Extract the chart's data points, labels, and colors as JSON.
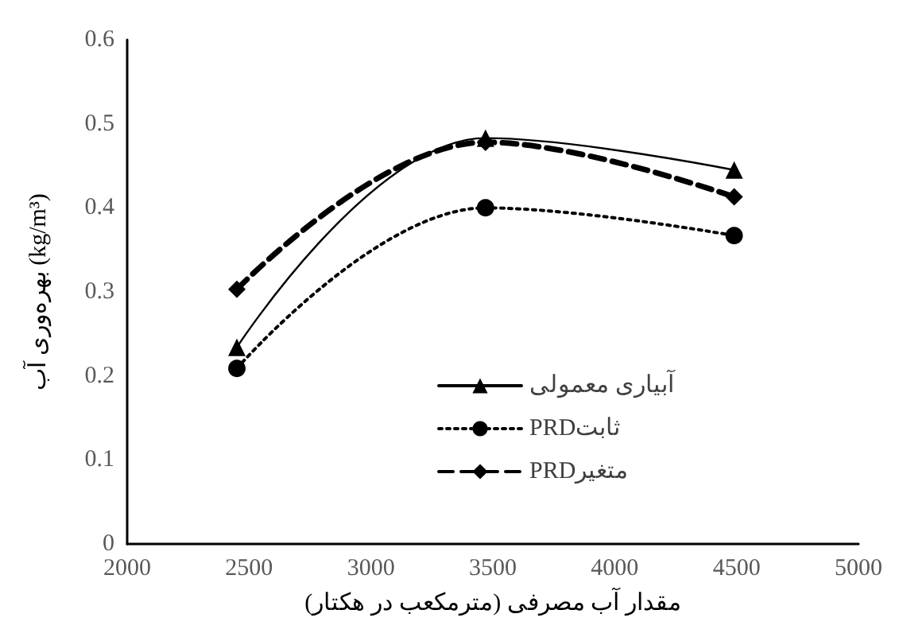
{
  "chart_data": {
    "type": "line",
    "xlabel": "مقدار آب مصرفی (مترمکعب در هکتار)",
    "ylabel": "بهره‌وری آب (kg/m³)",
    "x": [
      2450,
      3470,
      4490
    ],
    "xlim": [
      2000,
      5000
    ],
    "xticks": [
      2000,
      2500,
      3000,
      3500,
      4000,
      4500,
      5000
    ],
    "ylim": [
      0,
      0.6
    ],
    "yticks": [
      0,
      0.1,
      0.2,
      0.3,
      0.4,
      0.5,
      0.6
    ],
    "grid": false,
    "legend": "center",
    "series": [
      {
        "name": "آبیاری معمولی",
        "color": "#000000",
        "values": [
          0.234,
          0.483,
          0.445
        ],
        "marker": "triangle",
        "line_style": "solid"
      },
      {
        "name": "PRDثابت",
        "color": "#000000",
        "values": [
          0.209,
          0.4,
          0.367
        ],
        "marker": "circle",
        "line_style": "dotted"
      },
      {
        "name": "PRDمتغیر",
        "color": "#000000",
        "values": [
          0.303,
          0.478,
          0.413
        ],
        "marker": "diamond",
        "line_style": "dashed"
      }
    ]
  }
}
